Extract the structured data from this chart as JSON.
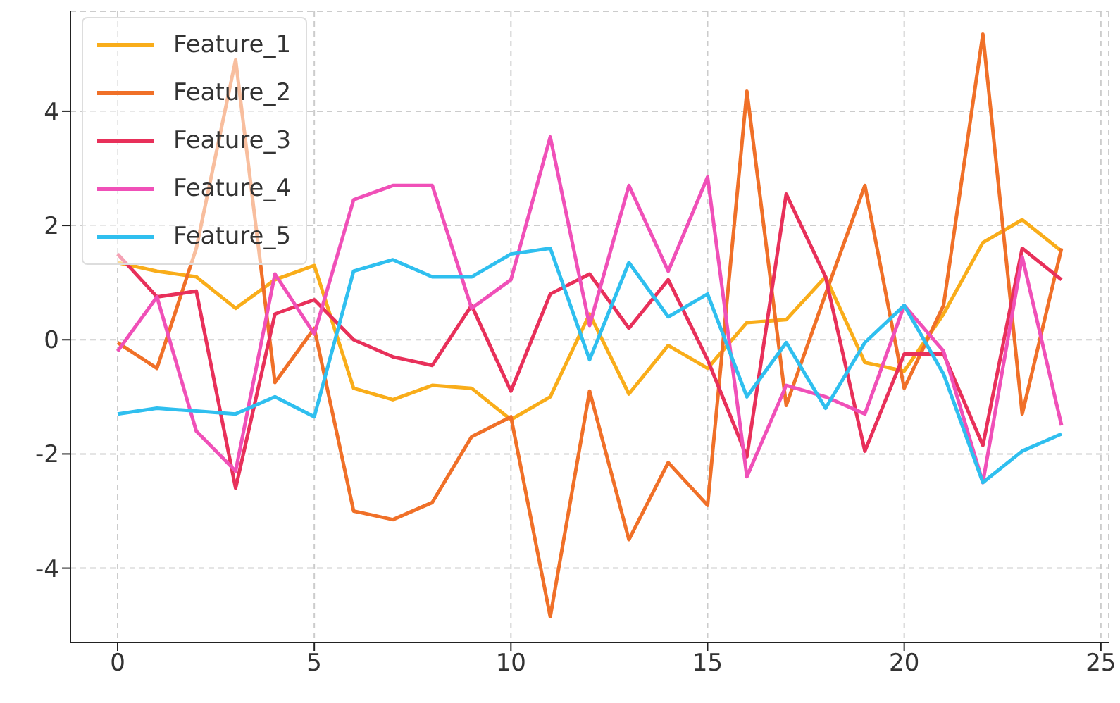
{
  "chart_data": {
    "type": "line",
    "x": [
      0,
      1,
      2,
      3,
      4,
      5,
      6,
      7,
      8,
      9,
      10,
      11,
      12,
      13,
      14,
      15,
      16,
      17,
      18,
      19,
      20,
      21,
      22,
      23,
      24
    ],
    "series": [
      {
        "name": "Feature_1",
        "color": "#f9ad1a",
        "values": [
          1.35,
          1.2,
          1.1,
          0.55,
          1.05,
          1.3,
          -0.85,
          -1.05,
          -0.8,
          -0.85,
          -1.4,
          -1.0,
          0.45,
          -0.95,
          -0.1,
          -0.5,
          0.3,
          0.35,
          1.1,
          -0.4,
          -0.55,
          0.45,
          1.7,
          2.1,
          1.55
        ]
      },
      {
        "name": "Feature_2",
        "color": "#f07028",
        "values": [
          -0.05,
          -0.5,
          1.6,
          4.9,
          -0.75,
          0.2,
          -3.0,
          -3.15,
          -2.85,
          -1.7,
          -1.35,
          -4.85,
          -0.9,
          -3.5,
          -2.15,
          -2.9,
          4.35,
          -1.15,
          0.8,
          2.7,
          -0.85,
          0.6,
          5.35,
          -1.3,
          1.6
        ]
      },
      {
        "name": "Feature_3",
        "color": "#e8305a",
        "values": [
          1.5,
          0.75,
          0.85,
          -2.6,
          0.45,
          0.7,
          0.0,
          -0.3,
          -0.45,
          0.6,
          -0.9,
          0.8,
          1.15,
          0.2,
          1.05,
          -0.35,
          -2.05,
          2.55,
          1.1,
          -1.95,
          -0.25,
          -0.25,
          -1.85,
          1.6,
          1.05
        ]
      },
      {
        "name": "Feature_4",
        "color": "#f050b8",
        "values": [
          -0.2,
          0.75,
          -1.6,
          -2.3,
          1.15,
          0.1,
          2.45,
          2.7,
          2.7,
          0.55,
          1.05,
          3.55,
          0.25,
          2.7,
          1.2,
          2.85,
          -2.4,
          -0.8,
          -1.0,
          -1.3,
          0.6,
          -0.2,
          -2.5,
          1.45,
          -1.5
        ]
      },
      {
        "name": "Feature_5",
        "color": "#2fbfef",
        "values": [
          -1.3,
          -1.2,
          -1.25,
          -1.3,
          -1.0,
          -1.35,
          1.2,
          1.4,
          1.1,
          1.1,
          1.5,
          1.6,
          -0.35,
          1.35,
          0.4,
          0.8,
          -1.0,
          -0.05,
          -1.2,
          -0.05,
          0.6,
          -0.6,
          -2.5,
          -1.95,
          -1.65
        ]
      }
    ],
    "xlim": [
      -1.2,
      25.2
    ],
    "xticks": [
      0,
      5,
      10,
      15,
      20,
      25
    ],
    "ylim": [
      -5.3,
      5.75
    ],
    "yticks": [
      -4,
      -2,
      0,
      2,
      4
    ],
    "grid": true,
    "legend": "top left",
    "line_style": "solid",
    "marker": "none"
  }
}
